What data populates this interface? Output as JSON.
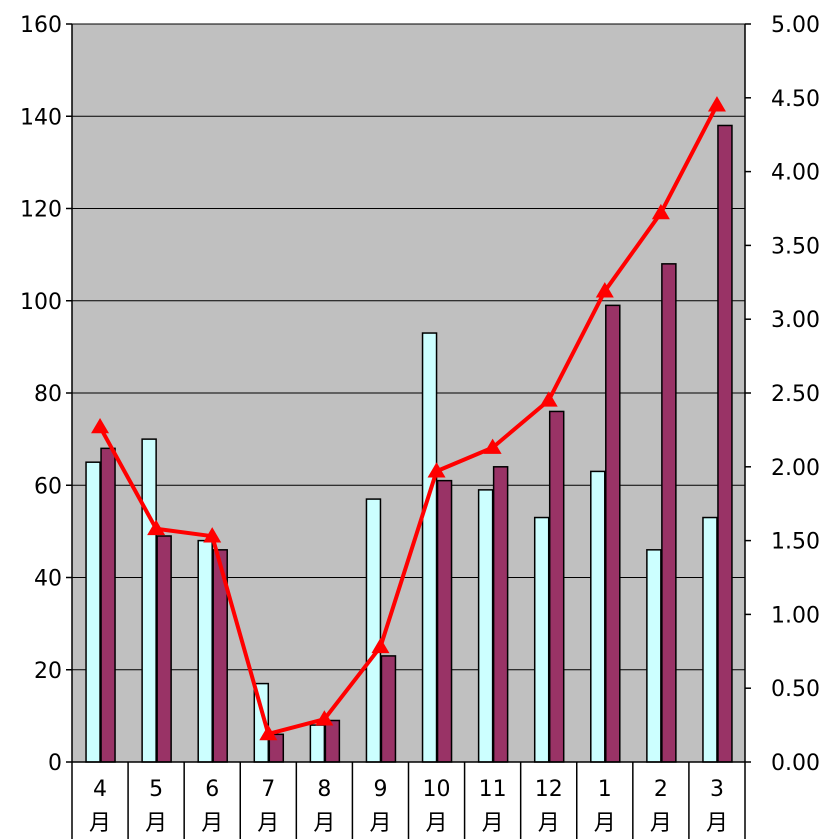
{
  "chart_data": {
    "type": "bar",
    "categories": [
      [
        "4",
        "月"
      ],
      [
        "5",
        "月"
      ],
      [
        "6",
        "月"
      ],
      [
        "7",
        "月"
      ],
      [
        "8",
        "月"
      ],
      [
        "9",
        "月"
      ],
      [
        "10",
        "月"
      ],
      [
        "11",
        "月"
      ],
      [
        "12",
        "月"
      ],
      [
        "1",
        "月"
      ],
      [
        "2",
        "月"
      ],
      [
        "3",
        "月"
      ]
    ],
    "series": [
      {
        "type": "bar",
        "axis": "left",
        "color": "#ccffff",
        "values": [
          65,
          70,
          48,
          17,
          8,
          57,
          93,
          59,
          53,
          63,
          46,
          53
        ]
      },
      {
        "type": "bar",
        "axis": "left",
        "color": "#993366",
        "values": [
          68,
          49,
          46,
          6,
          9,
          23,
          61,
          64,
          76,
          99,
          108,
          138
        ]
      },
      {
        "type": "line",
        "axis": "right",
        "color": "#ff0000",
        "marker": "triangle",
        "values": [
          2.27,
          1.58,
          1.53,
          0.19,
          0.29,
          0.78,
          1.97,
          2.13,
          2.45,
          3.19,
          3.72,
          4.45
        ]
      }
    ],
    "y_left": {
      "lim": [
        0,
        160
      ],
      "ticks": [
        "0",
        "20",
        "40",
        "60",
        "80",
        "100",
        "120",
        "140",
        "160"
      ]
    },
    "y_right": {
      "lim": [
        0,
        5
      ],
      "ticks": [
        "0.00",
        "0.50",
        "1.00",
        "1.50",
        "2.00",
        "2.50",
        "3.00",
        "3.50",
        "4.00",
        "4.50",
        "5.00"
      ]
    },
    "plot_background": "#c0c0c0",
    "grid": true,
    "legend": "none"
  }
}
